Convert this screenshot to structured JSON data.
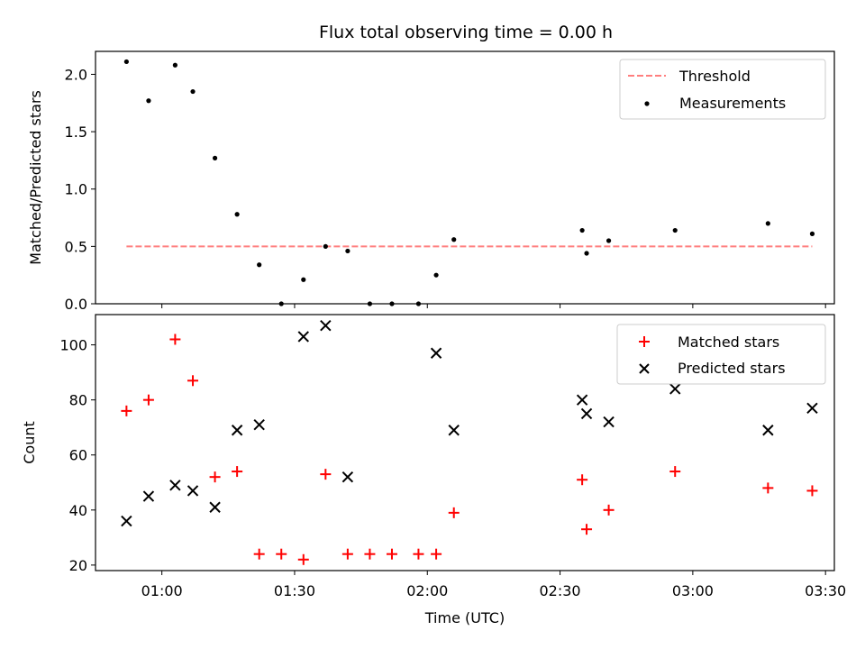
{
  "chart_data": [
    {
      "type": "scatter",
      "title": "Flux total observing time = 0.00 h",
      "xlabel": "",
      "ylabel": "Matched/Predicted stars",
      "ylim": [
        0,
        2.2
      ],
      "yticks": [
        "0.0",
        "0.5",
        "1.0",
        "1.5",
        "2.0"
      ],
      "ytick_values": [
        0,
        0.5,
        1.0,
        1.5,
        2.0
      ],
      "xlim": [
        "00:45",
        "03:32"
      ],
      "xticks": [
        "01:00",
        "01:30",
        "02:00",
        "02:30",
        "03:00",
        "03:30"
      ],
      "xtick_labels_shown": false,
      "threshold": {
        "name": "Threshold",
        "value": 0.5,
        "x": [
          "00:52",
          "03:27"
        ],
        "color": "#ff7f7f",
        "style": "dashed"
      },
      "series": [
        {
          "name": "Measurements",
          "marker": "dot",
          "color": "#000000",
          "x": [
            "00:52",
            "00:57",
            "01:03",
            "01:07",
            "01:12",
            "01:17",
            "01:22",
            "01:27",
            "01:32",
            "01:37",
            "01:42",
            "01:47",
            "01:52",
            "01:58",
            "02:02",
            "02:06",
            "02:35",
            "02:36",
            "02:41",
            "02:56",
            "03:17",
            "03:27"
          ],
          "y": [
            2.11,
            1.77,
            2.08,
            1.85,
            1.27,
            0.78,
            0.34,
            0.0,
            0.21,
            0.5,
            0.46,
            0.0,
            0.0,
            0.0,
            0.25,
            0.56,
            0.64,
            0.44,
            0.55,
            0.64,
            0.7,
            0.61
          ]
        }
      ],
      "legend": {
        "position": "upper right",
        "entries": [
          "Threshold",
          "Measurements"
        ]
      }
    },
    {
      "type": "scatter",
      "title": "",
      "xlabel": "Time (UTC)",
      "ylabel": "Count",
      "ylim": [
        18,
        111
      ],
      "yticks": [
        "20",
        "40",
        "60",
        "80",
        "100"
      ],
      "ytick_values": [
        20,
        40,
        60,
        80,
        100
      ],
      "xlim": [
        "00:45",
        "03:32"
      ],
      "xticks": [
        "01:00",
        "01:30",
        "02:00",
        "02:30",
        "03:00",
        "03:30"
      ],
      "series": [
        {
          "name": "Matched stars",
          "marker": "plus",
          "color": "#ff0000",
          "x": [
            "00:52",
            "00:57",
            "01:03",
            "01:07",
            "01:12",
            "01:17",
            "01:22",
            "01:27",
            "01:32",
            "01:37",
            "01:42",
            "01:47",
            "01:52",
            "01:58",
            "02:02",
            "02:06",
            "02:35",
            "02:36",
            "02:41",
            "02:56",
            "03:17",
            "03:27"
          ],
          "y": [
            76,
            80,
            102,
            87,
            52,
            54,
            24,
            24,
            22,
            53,
            24,
            24,
            24,
            24,
            24,
            39,
            51,
            33,
            40,
            54,
            48,
            47
          ]
        },
        {
          "name": "Predicted stars",
          "marker": "x",
          "color": "#000000",
          "x": [
            "00:52",
            "00:57",
            "01:03",
            "01:07",
            "01:12",
            "01:17",
            "01:22",
            "01:32",
            "01:37",
            "01:42",
            "02:02",
            "02:06",
            "02:35",
            "02:36",
            "02:41",
            "02:56",
            "03:17",
            "03:27"
          ],
          "y": [
            36,
            45,
            49,
            47,
            41,
            69,
            71,
            103,
            107,
            52,
            97,
            69,
            80,
            75,
            72,
            84,
            69,
            77
          ]
        }
      ],
      "legend": {
        "position": "upper right",
        "entries": [
          "Matched stars",
          "Predicted stars"
        ]
      }
    }
  ]
}
